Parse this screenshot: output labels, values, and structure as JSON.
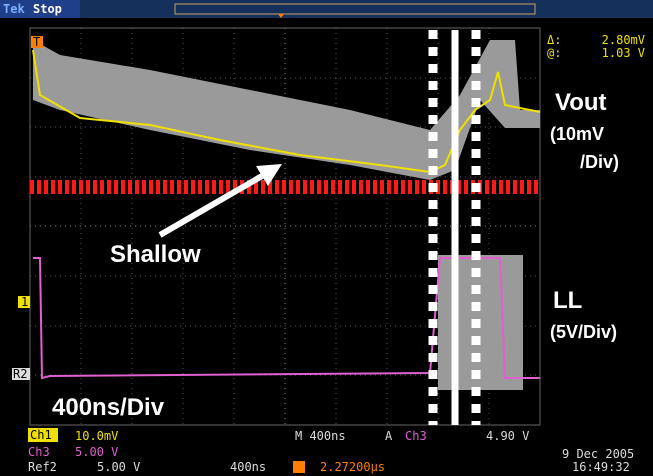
{
  "header": {
    "brand": "Tek",
    "state": "Stop"
  },
  "cursor_readout": {
    "delta_label": "Δ:",
    "delta_value": "2.80mV",
    "at_label": "@:",
    "at_value": "1.03 V"
  },
  "annotations": {
    "vout": "Vout",
    "vout_scale_1": "(10mV",
    "vout_scale_2": "/Div)",
    "shallow": "Shallow",
    "ll": "LL",
    "ll_scale": "(5V/Div)",
    "timebase": "400ns/Div"
  },
  "markers": {
    "trigger": "T",
    "ch1": "1",
    "ref2": "R2"
  },
  "footer": {
    "ch1": "Ch1",
    "ch1_scale": "10.0mV",
    "ch3": "Ch3",
    "ch3_scale": "5.00 V",
    "horizontal": "M 400ns",
    "trigger_mode": "A",
    "trigger_source": "Ch3",
    "trigger_level": "4.90 V",
    "date": "9 Dec 2005",
    "time": "16:49:32",
    "ref2": "Ref2",
    "ref2_scale": "5.00 V",
    "ref2_time": "400ns",
    "ref2_position": "2.27200µs"
  }
}
